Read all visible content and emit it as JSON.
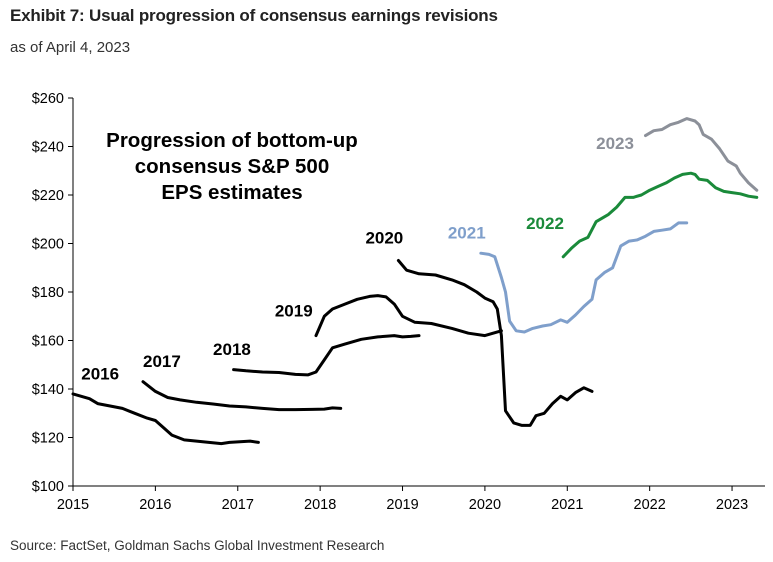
{
  "header": {
    "title": "Exhibit 7: Usual progression of consensus earnings revisions",
    "subtitle": "as of April 4, 2023"
  },
  "footer": {
    "source": "Source: FactSet, Goldman Sachs Global Investment Research"
  },
  "chart_data": {
    "type": "line",
    "annotation": [
      "Progression of bottom-up",
      "consensus S&P 500",
      "EPS estimates"
    ],
    "xlim": [
      2015,
      2023.4
    ],
    "ylim": [
      100,
      260
    ],
    "x_ticks": [
      2015,
      2016,
      2017,
      2018,
      2019,
      2020,
      2021,
      2022,
      2023
    ],
    "x_tick_labels": [
      "2015",
      "2016",
      "2017",
      "2018",
      "2019",
      "2020",
      "2021",
      "2022",
      "2023"
    ],
    "y_ticks": [
      100,
      120,
      140,
      160,
      180,
      200,
      220,
      240,
      260
    ],
    "y_tick_labels": [
      "$100",
      "$120",
      "$140",
      "$160",
      "$180",
      "$200",
      "$220",
      "$240",
      "$260"
    ],
    "grid": false,
    "series": [
      {
        "name": "2016",
        "color": "#000000",
        "points": [
          [
            2015.0,
            138
          ],
          [
            2015.2,
            136
          ],
          [
            2015.3,
            134
          ],
          [
            2015.45,
            133
          ],
          [
            2015.6,
            132
          ],
          [
            2015.75,
            130
          ],
          [
            2015.9,
            128
          ],
          [
            2016.0,
            127
          ],
          [
            2016.1,
            124
          ],
          [
            2016.2,
            121
          ],
          [
            2016.35,
            119
          ],
          [
            2016.5,
            118.5
          ],
          [
            2016.65,
            118
          ],
          [
            2016.8,
            117.5
          ],
          [
            2016.9,
            118
          ],
          [
            2017.05,
            118.3
          ],
          [
            2017.15,
            118.5
          ],
          [
            2017.25,
            118
          ]
        ]
      },
      {
        "name": "2017",
        "color": "#000000",
        "points": [
          [
            2015.85,
            143
          ],
          [
            2016.0,
            139
          ],
          [
            2016.15,
            136.5
          ],
          [
            2016.3,
            135.5
          ],
          [
            2016.5,
            134.5
          ],
          [
            2016.7,
            133.8
          ],
          [
            2016.9,
            133
          ],
          [
            2017.1,
            132.6
          ],
          [
            2017.3,
            132
          ],
          [
            2017.5,
            131.5
          ],
          [
            2017.7,
            131.5
          ],
          [
            2017.9,
            131.6
          ],
          [
            2018.05,
            131.7
          ],
          [
            2018.15,
            132.2
          ],
          [
            2018.25,
            132
          ]
        ]
      },
      {
        "name": "2018",
        "color": "#000000",
        "points": [
          [
            2016.95,
            148
          ],
          [
            2017.1,
            147.5
          ],
          [
            2017.3,
            147
          ],
          [
            2017.5,
            146.8
          ],
          [
            2017.7,
            146
          ],
          [
            2017.85,
            145.8
          ],
          [
            2017.95,
            147
          ],
          [
            2018.05,
            152
          ],
          [
            2018.15,
            157
          ],
          [
            2018.3,
            158.5
          ],
          [
            2018.5,
            160.5
          ],
          [
            2018.7,
            161.5
          ],
          [
            2018.9,
            162
          ],
          [
            2019.0,
            161.5
          ],
          [
            2019.1,
            161.7
          ],
          [
            2019.2,
            162
          ]
        ]
      },
      {
        "name": "2019",
        "color": "#000000",
        "points": [
          [
            2017.95,
            162
          ],
          [
            2018.05,
            170
          ],
          [
            2018.15,
            173
          ],
          [
            2018.3,
            175
          ],
          [
            2018.45,
            177
          ],
          [
            2018.6,
            178.2
          ],
          [
            2018.7,
            178.5
          ],
          [
            2018.8,
            178
          ],
          [
            2018.9,
            175
          ],
          [
            2019.0,
            170
          ],
          [
            2019.15,
            167.5
          ],
          [
            2019.35,
            167
          ],
          [
            2019.6,
            165
          ],
          [
            2019.8,
            163
          ],
          [
            2020.0,
            162
          ],
          [
            2020.1,
            163
          ],
          [
            2020.2,
            164
          ]
        ]
      },
      {
        "name": "2020",
        "color": "#000000",
        "points": [
          [
            2018.95,
            193
          ],
          [
            2019.05,
            189
          ],
          [
            2019.2,
            187.5
          ],
          [
            2019.4,
            187
          ],
          [
            2019.6,
            185
          ],
          [
            2019.75,
            183
          ],
          [
            2019.9,
            180
          ],
          [
            2020.0,
            177.5
          ],
          [
            2020.1,
            176
          ],
          [
            2020.15,
            173
          ],
          [
            2020.2,
            162
          ],
          [
            2020.25,
            131
          ],
          [
            2020.35,
            126
          ],
          [
            2020.45,
            125
          ],
          [
            2020.55,
            125
          ],
          [
            2020.62,
            129
          ],
          [
            2020.72,
            130
          ],
          [
            2020.82,
            134
          ],
          [
            2020.92,
            137
          ],
          [
            2021.0,
            135.5
          ],
          [
            2021.1,
            138.5
          ],
          [
            2021.2,
            140.5
          ],
          [
            2021.3,
            139
          ]
        ]
      },
      {
        "name": "2021",
        "color": "#7F9FCB",
        "points": [
          [
            2019.95,
            196
          ],
          [
            2020.05,
            195.5
          ],
          [
            2020.12,
            194.5
          ],
          [
            2020.2,
            186
          ],
          [
            2020.25,
            180
          ],
          [
            2020.3,
            168
          ],
          [
            2020.38,
            164
          ],
          [
            2020.48,
            163.5
          ],
          [
            2020.58,
            165
          ],
          [
            2020.7,
            166
          ],
          [
            2020.8,
            166.5
          ],
          [
            2020.92,
            168.5
          ],
          [
            2021.0,
            167.5
          ],
          [
            2021.1,
            170.5
          ],
          [
            2021.2,
            174
          ],
          [
            2021.3,
            177
          ],
          [
            2021.35,
            185
          ],
          [
            2021.45,
            188
          ],
          [
            2021.55,
            190
          ],
          [
            2021.65,
            199
          ],
          [
            2021.75,
            201
          ],
          [
            2021.85,
            201.5
          ],
          [
            2021.95,
            203
          ],
          [
            2022.05,
            205
          ],
          [
            2022.15,
            205.5
          ],
          [
            2022.25,
            206
          ],
          [
            2022.35,
            208.5
          ],
          [
            2022.45,
            208.5
          ]
        ]
      },
      {
        "name": "2022",
        "color": "#1A8A3A",
        "points": [
          [
            2020.95,
            194.5
          ],
          [
            2021.05,
            198
          ],
          [
            2021.15,
            201
          ],
          [
            2021.25,
            202.5
          ],
          [
            2021.35,
            209
          ],
          [
            2021.5,
            212
          ],
          [
            2021.6,
            215
          ],
          [
            2021.7,
            219
          ],
          [
            2021.8,
            219
          ],
          [
            2021.9,
            220
          ],
          [
            2022.0,
            222
          ],
          [
            2022.1,
            223.5
          ],
          [
            2022.2,
            225
          ],
          [
            2022.3,
            227
          ],
          [
            2022.4,
            228.5
          ],
          [
            2022.5,
            229
          ],
          [
            2022.55,
            228.5
          ],
          [
            2022.6,
            226.5
          ],
          [
            2022.7,
            226
          ],
          [
            2022.8,
            223
          ],
          [
            2022.9,
            221.5
          ],
          [
            2023.0,
            221
          ],
          [
            2023.1,
            220.5
          ],
          [
            2023.2,
            219.5
          ],
          [
            2023.3,
            219
          ]
        ]
      },
      {
        "name": "2023",
        "color": "#8C9099",
        "points": [
          [
            2021.95,
            244.5
          ],
          [
            2022.05,
            246.5
          ],
          [
            2022.15,
            247
          ],
          [
            2022.25,
            249
          ],
          [
            2022.35,
            250
          ],
          [
            2022.45,
            251.5
          ],
          [
            2022.55,
            250.5
          ],
          [
            2022.6,
            249
          ],
          [
            2022.65,
            245
          ],
          [
            2022.75,
            243
          ],
          [
            2022.85,
            239
          ],
          [
            2022.95,
            234
          ],
          [
            2023.05,
            232
          ],
          [
            2023.1,
            229
          ],
          [
            2023.2,
            225
          ],
          [
            2023.3,
            222
          ]
        ]
      }
    ],
    "series_labels": [
      {
        "text": "2016",
        "x": 2015.1,
        "y": 144,
        "color": "#000000"
      },
      {
        "text": "2017",
        "x": 2015.85,
        "y": 149,
        "color": "#000000"
      },
      {
        "text": "2018",
        "x": 2016.7,
        "y": 154,
        "color": "#000000"
      },
      {
        "text": "2019",
        "x": 2017.45,
        "y": 170,
        "color": "#000000"
      },
      {
        "text": "2020",
        "x": 2018.55,
        "y": 200,
        "color": "#000000"
      },
      {
        "text": "2021",
        "x": 2019.55,
        "y": 202,
        "color": "#7F9FCB"
      },
      {
        "text": "2022",
        "x": 2020.5,
        "y": 206,
        "color": "#1A8A3A"
      },
      {
        "text": "2023",
        "x": 2021.35,
        "y": 239,
        "color": "#8C9099"
      }
    ]
  }
}
